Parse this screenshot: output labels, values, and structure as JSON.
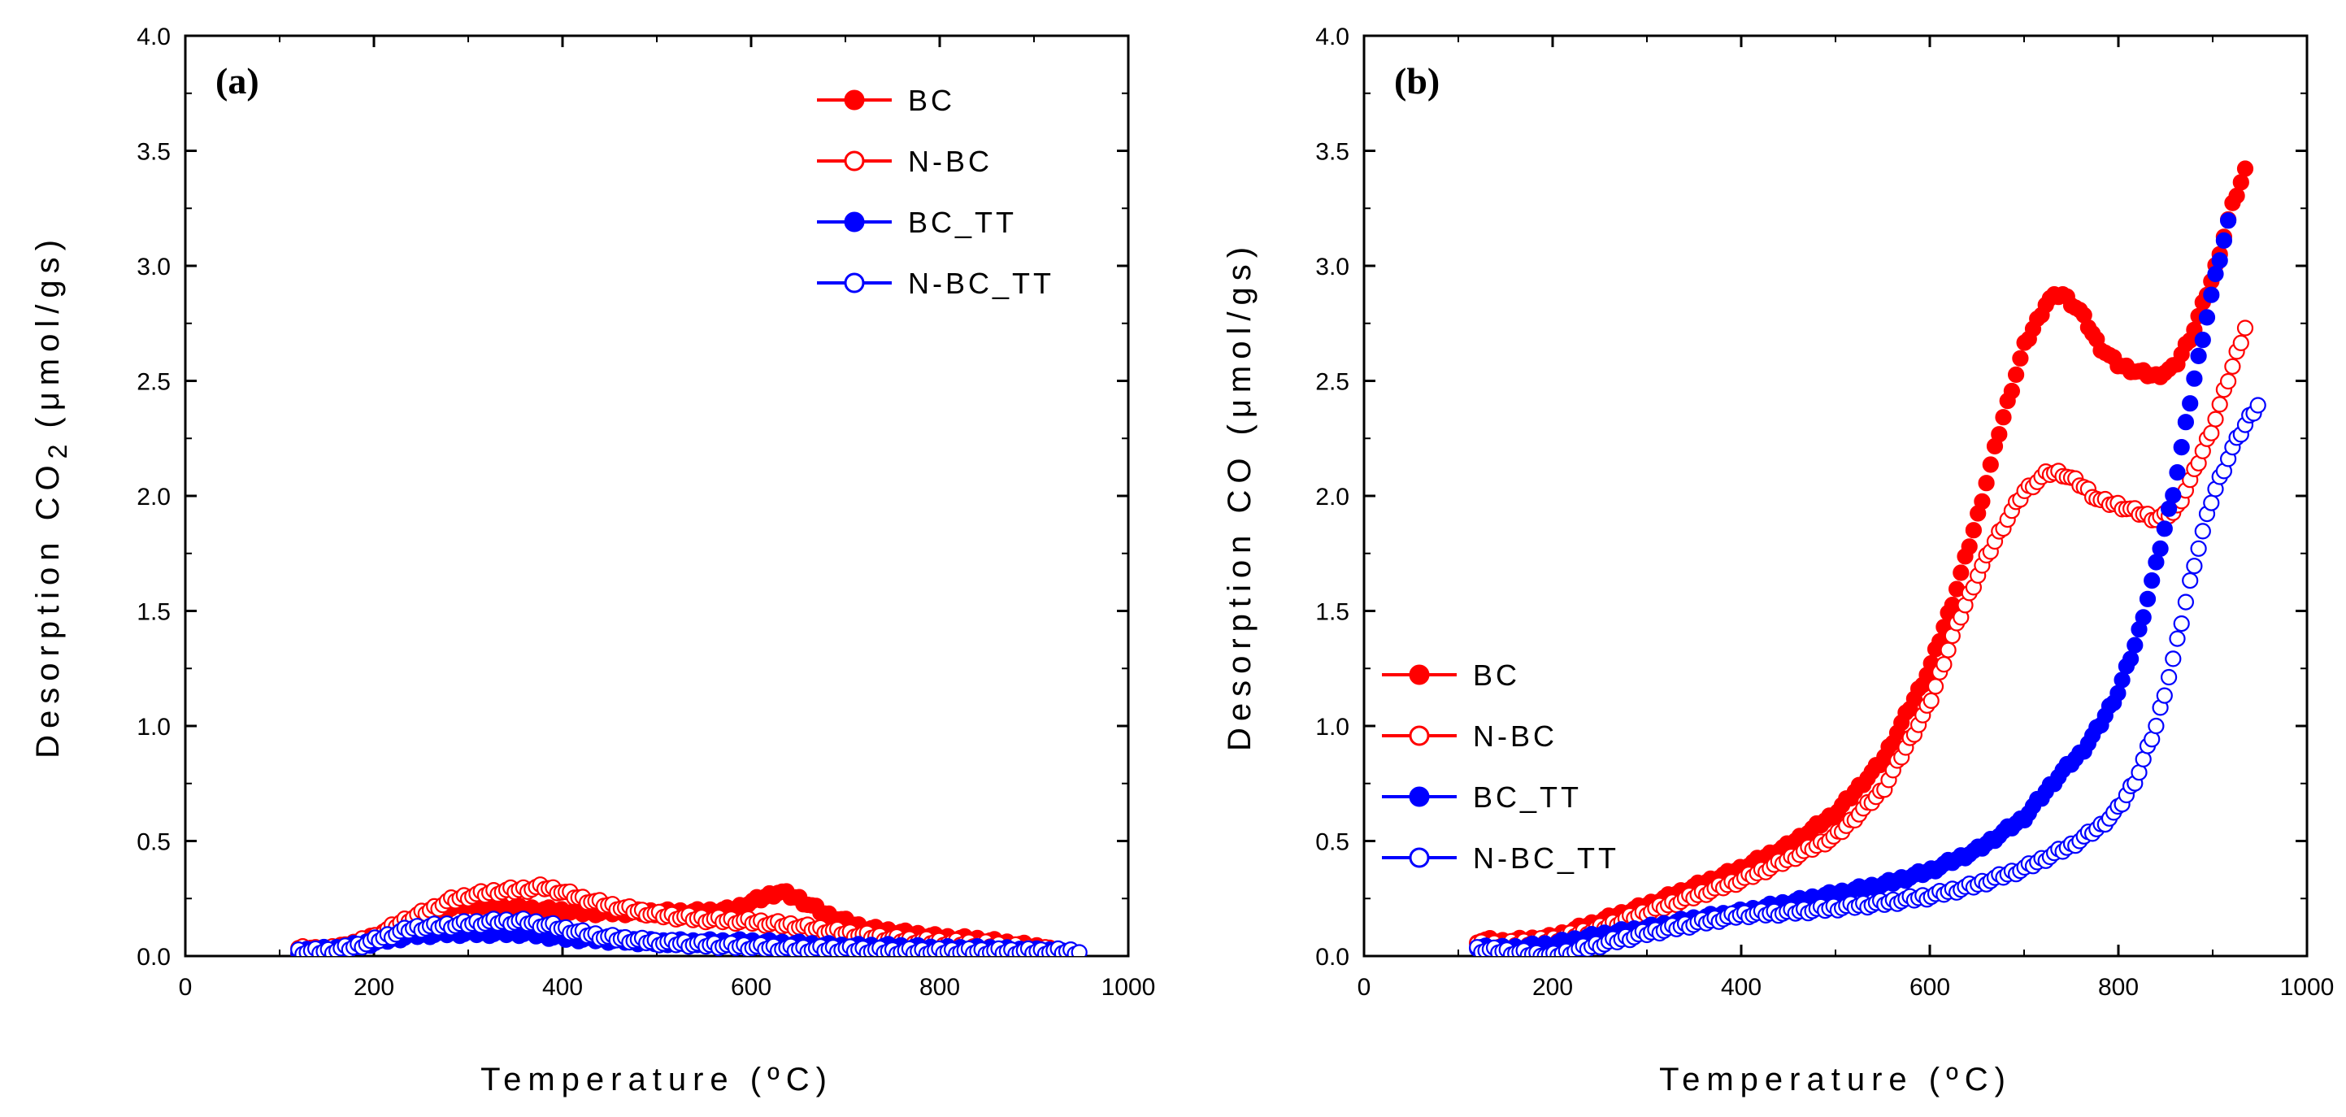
{
  "chart_data": [
    {
      "type": "scatter",
      "panel_label": "(a)",
      "xlabel": "Temperature (ºC)",
      "ylabel": "Desorption CO",
      "ylabel_subscript": "2",
      "ylabel_units": "(μmol/gs)",
      "xlim": [
        0,
        1000
      ],
      "ylim": [
        0,
        4.0
      ],
      "x_ticks": [
        0,
        200,
        400,
        600,
        800,
        1000
      ],
      "y_ticks": [
        "0.0",
        "0.5",
        "1.0",
        "1.5",
        "2.0",
        "2.5",
        "3.0",
        "3.5",
        "4.0"
      ],
      "legend_position": "top-right",
      "series": [
        {
          "name": "BC",
          "color": "#ff0000",
          "marker": "filled-circle",
          "x": [
            120,
            160,
            200,
            240,
            260,
            280,
            300,
            340,
            380,
            420,
            460,
            500,
            540,
            580,
            610,
            630,
            650,
            680,
            720,
            760,
            800,
            840,
            880,
            920
          ],
          "y": [
            0.02,
            0.03,
            0.08,
            0.15,
            0.19,
            0.21,
            0.22,
            0.21,
            0.2,
            0.19,
            0.19,
            0.19,
            0.19,
            0.2,
            0.25,
            0.28,
            0.25,
            0.18,
            0.12,
            0.1,
            0.08,
            0.07,
            0.05,
            0.03
          ]
        },
        {
          "name": "N-BC",
          "color": "#ff0000",
          "marker": "open-circle",
          "x": [
            120,
            160,
            200,
            230,
            260,
            280,
            300,
            330,
            360,
            380,
            400,
            420,
            450,
            500,
            550,
            600,
            650,
            700,
            760,
            800,
            850,
            900,
            930
          ],
          "y": [
            0.03,
            0.03,
            0.08,
            0.15,
            0.2,
            0.24,
            0.26,
            0.28,
            0.29,
            0.3,
            0.28,
            0.25,
            0.22,
            0.18,
            0.16,
            0.15,
            0.13,
            0.1,
            0.07,
            0.06,
            0.05,
            0.03,
            0.02
          ]
        },
        {
          "name": "BC_TT",
          "color": "#0000ff",
          "marker": "filled-circle",
          "x": [
            120,
            160,
            200,
            240,
            280,
            320,
            360,
            400,
            450,
            500,
            550,
            600,
            650,
            700,
            750,
            800,
            850,
            900,
            930
          ],
          "y": [
            0.02,
            0.03,
            0.06,
            0.09,
            0.1,
            0.1,
            0.1,
            0.08,
            0.07,
            0.06,
            0.06,
            0.06,
            0.05,
            0.04,
            0.04,
            0.03,
            0.03,
            0.02,
            0.02
          ]
        },
        {
          "name": "N-BC_TT",
          "color": "#0000ff",
          "marker": "open-circle",
          "x": [
            120,
            150,
            180,
            210,
            240,
            270,
            300,
            330,
            360,
            390,
            420,
            450,
            500,
            550,
            600,
            650,
            700,
            750,
            800,
            850,
            900,
            950
          ],
          "y": [
            0.02,
            0.02,
            0.04,
            0.08,
            0.12,
            0.13,
            0.14,
            0.15,
            0.15,
            0.13,
            0.1,
            0.08,
            0.06,
            0.05,
            0.04,
            0.03,
            0.03,
            0.02,
            0.02,
            0.02,
            0.02,
            0.02
          ]
        }
      ]
    },
    {
      "type": "scatter",
      "panel_label": "(b)",
      "xlabel": "Temperature (ºC)",
      "ylabel": "Desorption CO",
      "ylabel_subscript": "",
      "ylabel_units": "(μmol/gs)",
      "xlim": [
        0,
        1000
      ],
      "ylim": [
        0,
        4.0
      ],
      "x_ticks": [
        0,
        200,
        400,
        600,
        800,
        1000
      ],
      "y_ticks": [
        "0.0",
        "0.5",
        "1.0",
        "1.5",
        "2.0",
        "2.5",
        "3.0",
        "3.5",
        "4.0"
      ],
      "legend_position": "bottom-left",
      "series": [
        {
          "name": "BC",
          "color": "#ff0000",
          "marker": "filled-circle",
          "x": [
            120,
            150,
            200,
            250,
            300,
            350,
            400,
            450,
            500,
            550,
            600,
            625,
            650,
            675,
            700,
            725,
            740,
            760,
            780,
            800,
            820,
            840,
            860,
            880,
            900,
            920,
            935
          ],
          "y": [
            0.07,
            0.06,
            0.08,
            0.15,
            0.22,
            0.3,
            0.38,
            0.48,
            0.62,
            0.85,
            1.25,
            1.55,
            1.9,
            2.3,
            2.65,
            2.85,
            2.88,
            2.8,
            2.65,
            2.57,
            2.54,
            2.52,
            2.56,
            2.72,
            2.95,
            3.25,
            3.42
          ]
        },
        {
          "name": "N-BC",
          "color": "#ff0000",
          "marker": "open-circle",
          "x": [
            120,
            150,
            200,
            250,
            300,
            350,
            400,
            450,
            500,
            550,
            600,
            625,
            650,
            675,
            700,
            725,
            740,
            760,
            780,
            800,
            820,
            840,
            860,
            880,
            900,
            920,
            935
          ],
          "y": [
            0.05,
            0.05,
            0.07,
            0.12,
            0.19,
            0.26,
            0.33,
            0.42,
            0.52,
            0.72,
            1.1,
            1.4,
            1.65,
            1.85,
            2.02,
            2.1,
            2.1,
            2.05,
            1.98,
            1.96,
            1.93,
            1.9,
            1.93,
            2.1,
            2.3,
            2.55,
            2.74
          ]
        },
        {
          "name": "BC_TT",
          "color": "#0000ff",
          "marker": "filled-circle",
          "x": [
            120,
            150,
            200,
            250,
            300,
            350,
            400,
            450,
            500,
            550,
            600,
            650,
            700,
            740,
            760,
            780,
            800,
            820,
            840,
            860,
            880,
            900,
            920
          ],
          "y": [
            0.04,
            0.03,
            0.05,
            0.09,
            0.12,
            0.16,
            0.19,
            0.23,
            0.27,
            0.31,
            0.37,
            0.46,
            0.6,
            0.8,
            0.88,
            1.0,
            1.15,
            1.38,
            1.7,
            2.05,
            2.5,
            2.9,
            3.25
          ]
        },
        {
          "name": "N-BC_TT",
          "color": "#0000ff",
          "marker": "open-circle",
          "x": [
            120,
            150,
            200,
            250,
            300,
            350,
            400,
            450,
            500,
            550,
            600,
            650,
            700,
            750,
            780,
            800,
            820,
            840,
            860,
            880,
            900,
            920,
            940,
            950
          ],
          "y": [
            0.03,
            0.02,
            0.0,
            0.05,
            0.1,
            0.14,
            0.18,
            0.19,
            0.21,
            0.23,
            0.26,
            0.31,
            0.38,
            0.48,
            0.56,
            0.64,
            0.78,
            1.0,
            1.32,
            1.7,
            2.0,
            2.2,
            2.35,
            2.41
          ]
        }
      ]
    }
  ]
}
